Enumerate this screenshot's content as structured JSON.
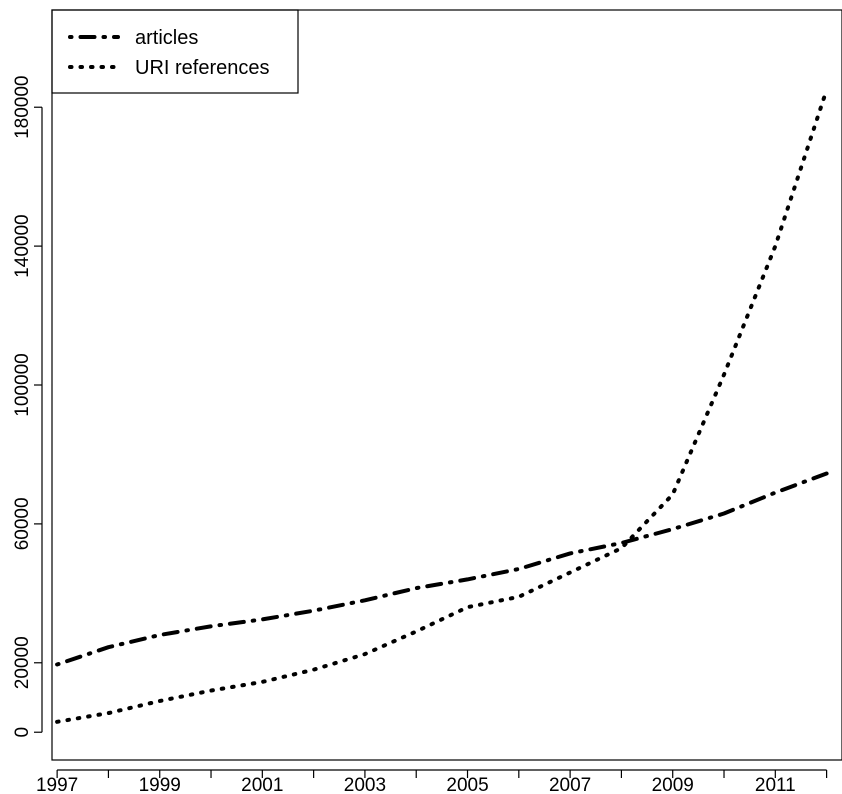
{
  "chart_data": {
    "type": "line",
    "title": "",
    "xlabel": "",
    "ylabel": "",
    "x": [
      1997,
      1998,
      1999,
      2000,
      2001,
      2002,
      2003,
      2004,
      2005,
      2006,
      2007,
      2008,
      2009,
      2010,
      2011,
      2012
    ],
    "series": [
      {
        "name": "articles",
        "line_style": "dotdash",
        "values": [
          19500,
          24500,
          28000,
          30500,
          32500,
          35000,
          38000,
          41500,
          44000,
          47000,
          51500,
          54500,
          58500,
          63000,
          69000,
          74500
        ]
      },
      {
        "name": "URI references",
        "line_style": "dotted",
        "values": [
          3000,
          5500,
          9000,
          12000,
          14500,
          18000,
          22500,
          29000,
          36000,
          39000,
          46000,
          53000,
          68500,
          103000,
          140000,
          185000
        ]
      }
    ],
    "xlim": [
      1996.9,
      2012.3
    ],
    "ylim": [
      -8000,
      208000
    ],
    "x_ticks": [
      1997,
      1999,
      2001,
      2003,
      2005,
      2007,
      2009,
      2011
    ],
    "x_minor_ticks": [
      1998,
      2000,
      2002,
      2004,
      2006,
      2008,
      2010,
      2012
    ],
    "y_ticks": [
      0,
      20000,
      60000,
      100000,
      140000,
      180000
    ],
    "y_tick_labels": [
      "0",
      "20000",
      "60000",
      "100000",
      "140000",
      "180000"
    ],
    "grid": false,
    "legend_position": "top-left",
    "colors": {
      "articles": "#000000",
      "URI references": "#000000"
    }
  }
}
